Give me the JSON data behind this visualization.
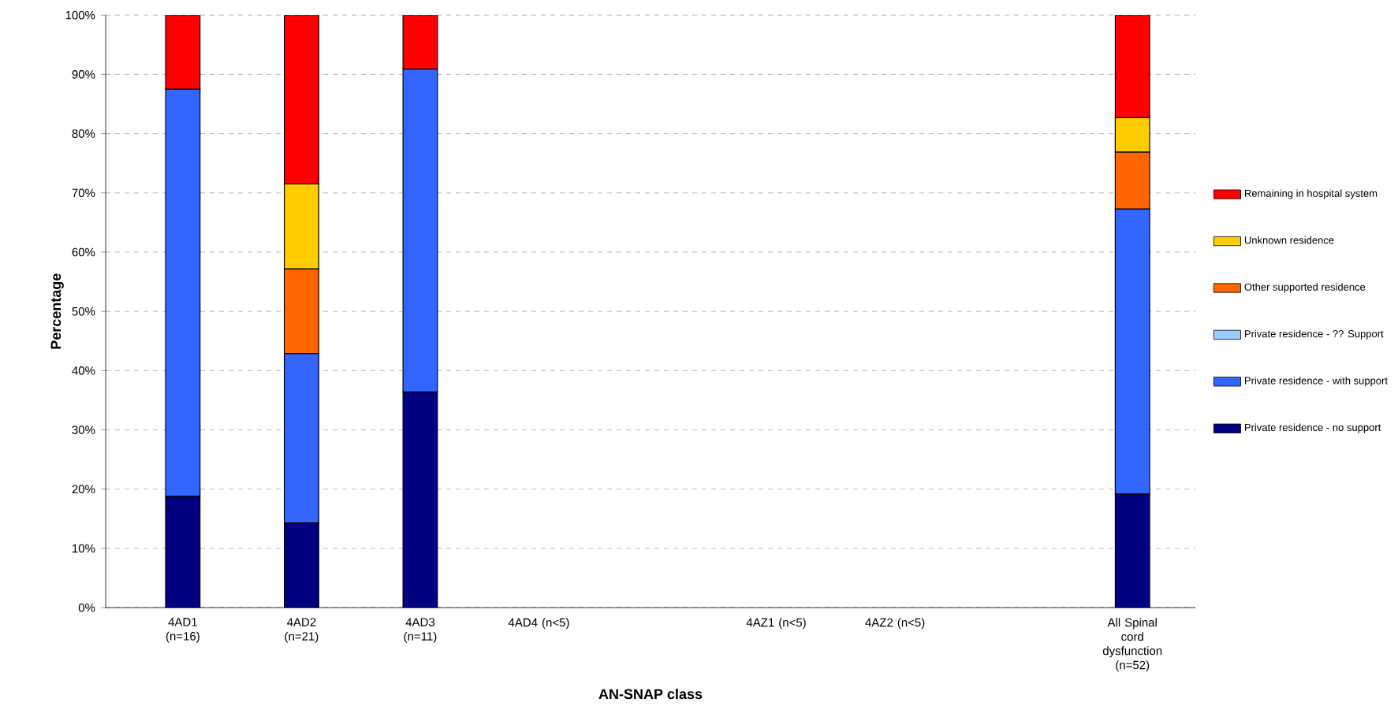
{
  "chart_data": {
    "type": "bar",
    "stacked": true,
    "xlabel": "AN-SNAP class",
    "ylabel": "Percentage",
    "categories": [
      "4AD1 (n=16)",
      "4AD2 (n=21)",
      "4AD3 (n=11)",
      "4AD4 (n<5)",
      null,
      "4AZ1 (n<5)",
      "4AZ2 (n<5)",
      null,
      "All Spinal cord dysfunction (n=52)"
    ],
    "series": [
      {
        "name": "Private residence - no support",
        "color": "#000080",
        "values": [
          18.8,
          14.3,
          36.4,
          null,
          null,
          null,
          null,
          null,
          19.2
        ]
      },
      {
        "name": "Private residence - with support",
        "color": "#3366ff",
        "values": [
          68.7,
          28.6,
          54.5,
          null,
          null,
          null,
          null,
          null,
          48.1
        ]
      },
      {
        "name": "Private residence - ?? Support",
        "color": "#99ccff",
        "values": [
          null,
          null,
          null,
          null,
          null,
          null,
          null,
          null,
          null
        ]
      },
      {
        "name": "Other supported residence",
        "color": "#ff6600",
        "values": [
          null,
          14.3,
          null,
          null,
          null,
          null,
          null,
          null,
          9.6
        ]
      },
      {
        "name": "Unknown residence",
        "color": "#ffcc00",
        "values": [
          null,
          14.3,
          null,
          null,
          null,
          null,
          null,
          null,
          5.8
        ]
      },
      {
        "name": "Remaining in hospital system",
        "color": "#ff0000",
        "values": [
          12.5,
          28.5,
          9.1,
          null,
          null,
          null,
          null,
          null,
          17.3
        ]
      }
    ],
    "ylim": [
      0,
      100
    ],
    "yticks": [
      {
        "value": 0,
        "label": "0%"
      },
      {
        "value": 10,
        "label": "10%"
      },
      {
        "value": 20,
        "label": "20%"
      },
      {
        "value": 30,
        "label": "30%"
      },
      {
        "value": 40,
        "label": "40%"
      },
      {
        "value": 50,
        "label": "50%"
      },
      {
        "value": 60,
        "label": "60%"
      },
      {
        "value": 70,
        "label": "70%"
      },
      {
        "value": 80,
        "label": "80%"
      },
      {
        "value": 90,
        "label": "90%"
      },
      {
        "value": 100,
        "label": "100%"
      }
    ],
    "grid": "y",
    "legend": "right"
  }
}
